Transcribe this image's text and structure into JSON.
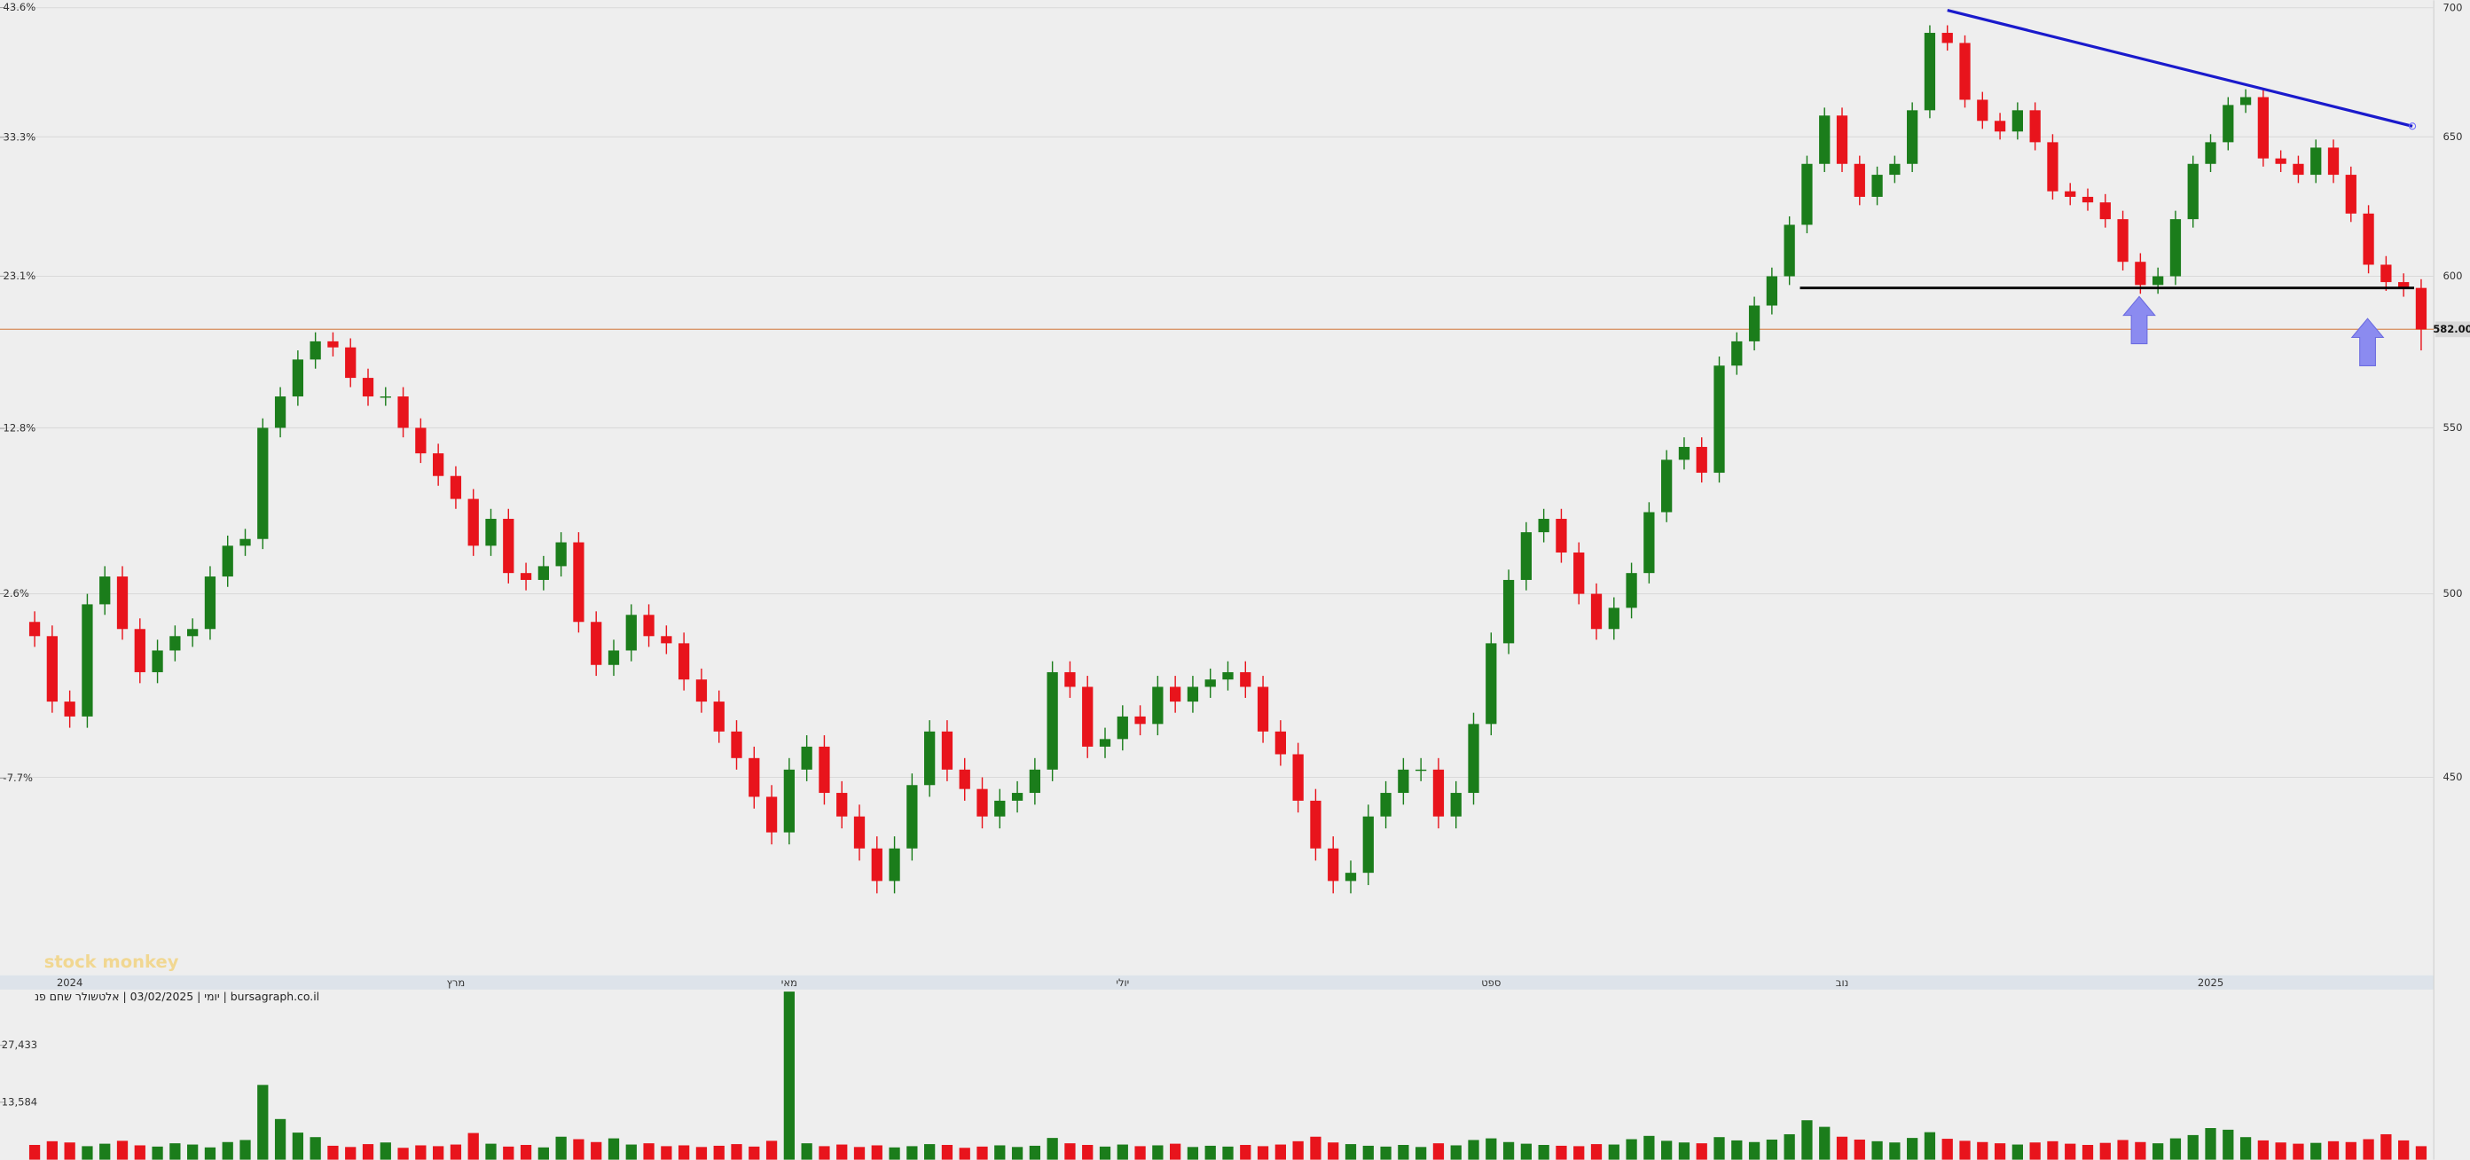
{
  "chart_data": {
    "type": "candlestick",
    "log_scale": true,
    "grid": true,
    "up_color": "#1b7d1b",
    "down_color": "#e8141c",
    "categories": [
      null,
      null,
      "2024",
      null,
      null,
      null,
      null,
      null,
      null,
      null,
      null,
      null,
      null,
      null,
      null,
      null,
      null,
      null,
      null,
      null,
      null,
      null,
      null,
      null,
      "מרץ",
      null,
      null,
      null,
      null,
      null,
      null,
      null,
      null,
      null,
      null,
      null,
      null,
      null,
      null,
      null,
      null,
      null,
      null,
      "מאי",
      null,
      null,
      null,
      null,
      null,
      null,
      null,
      null,
      null,
      null,
      null,
      null,
      null,
      null,
      null,
      null,
      null,
      null,
      "יולי",
      null,
      null,
      null,
      null,
      null,
      null,
      null,
      null,
      null,
      null,
      null,
      null,
      null,
      null,
      null,
      null,
      null,
      null,
      null,
      null,
      "ספט",
      null,
      null,
      null,
      null,
      null,
      null,
      null,
      null,
      null,
      null,
      null,
      null,
      null,
      null,
      null,
      null,
      null,
      null,
      null,
      "נוב",
      null,
      null,
      null,
      null,
      null,
      null,
      null,
      null,
      null,
      null,
      null,
      null,
      null,
      null,
      null,
      null,
      null,
      null,
      null,
      null,
      "2025",
      null,
      null,
      null,
      null,
      null,
      null,
      null,
      null,
      null,
      null,
      null,
      null
    ],
    "open": [
      492,
      488,
      470,
      466,
      497,
      505,
      490,
      478,
      484,
      488,
      490,
      505,
      514,
      516,
      550,
      560,
      572,
      578,
      576,
      566,
      560,
      560,
      550,
      542,
      535,
      528,
      514,
      522,
      506,
      504,
      508,
      515,
      492,
      480,
      484,
      494,
      488,
      486,
      476,
      470,
      462,
      455,
      445,
      436,
      452,
      458,
      446,
      440,
      432,
      424,
      432,
      448,
      462,
      452,
      447,
      440,
      444,
      446,
      452,
      478,
      474,
      458,
      460,
      466,
      464,
      474,
      470,
      474,
      476,
      478,
      474,
      462,
      456,
      444,
      432,
      424,
      426,
      440,
      446,
      452,
      452,
      440,
      446,
      464,
      486,
      504,
      518,
      522,
      512,
      500,
      490,
      496,
      506,
      524,
      540,
      544,
      536,
      570,
      578,
      590,
      600,
      618,
      640,
      658,
      640,
      628,
      636,
      640,
      660,
      690,
      686,
      664,
      656,
      652,
      660,
      648,
      630,
      628,
      626,
      620,
      605,
      597,
      600,
      620,
      640,
      648,
      662,
      665,
      642,
      640,
      636,
      646,
      636,
      622,
      604,
      598,
      596
    ],
    "high": [
      495,
      491,
      473,
      500,
      508,
      508,
      493,
      487,
      491,
      493,
      508,
      517,
      519,
      553,
      563,
      575,
      581,
      581,
      579,
      569,
      563,
      563,
      553,
      545,
      538,
      531,
      525,
      525,
      509,
      511,
      518,
      518,
      495,
      487,
      497,
      497,
      491,
      489,
      479,
      473,
      465,
      458,
      448,
      455,
      461,
      461,
      449,
      443,
      435,
      435,
      451,
      465,
      465,
      455,
      450,
      447,
      449,
      455,
      481,
      481,
      477,
      463,
      469,
      469,
      477,
      477,
      477,
      479,
      481,
      481,
      477,
      465,
      459,
      447,
      435,
      429,
      443,
      449,
      455,
      455,
      455,
      449,
      467,
      489,
      507,
      521,
      525,
      525,
      515,
      503,
      499,
      509,
      527,
      543,
      547,
      547,
      573,
      581,
      593,
      603,
      621,
      643,
      661,
      661,
      643,
      639,
      643,
      663,
      693,
      693,
      689,
      667,
      659,
      663,
      663,
      651,
      633,
      631,
      629,
      623,
      608,
      603,
      623,
      643,
      651,
      665,
      668,
      668,
      645,
      643,
      649,
      649,
      639,
      625,
      607,
      601,
      599
    ],
    "low": [
      485,
      467,
      463,
      463,
      494,
      487,
      475,
      475,
      481,
      485,
      487,
      502,
      511,
      513,
      547,
      557,
      569,
      573,
      563,
      557,
      557,
      547,
      539,
      532,
      525,
      511,
      511,
      503,
      501,
      501,
      505,
      489,
      477,
      477,
      481,
      485,
      483,
      473,
      467,
      459,
      452,
      442,
      433,
      433,
      449,
      443,
      437,
      429,
      421,
      421,
      429,
      445,
      449,
      444,
      437,
      437,
      441,
      443,
      449,
      471,
      455,
      455,
      457,
      461,
      461,
      467,
      467,
      471,
      473,
      471,
      459,
      453,
      441,
      429,
      421,
      421,
      423,
      437,
      443,
      449,
      437,
      437,
      443,
      461,
      483,
      501,
      515,
      509,
      497,
      487,
      487,
      493,
      503,
      521,
      537,
      533,
      533,
      567,
      575,
      587,
      597,
      615,
      637,
      637,
      625,
      625,
      633,
      637,
      657,
      683,
      661,
      653,
      649,
      649,
      645,
      627,
      625,
      623,
      617,
      602,
      594,
      594,
      597,
      617,
      637,
      645,
      659,
      639,
      637,
      633,
      633,
      633,
      619,
      601,
      595,
      593,
      575
    ],
    "close": [
      488,
      470,
      466,
      497,
      505,
      490,
      478,
      484,
      488,
      490,
      505,
      514,
      516,
      550,
      560,
      572,
      578,
      576,
      566,
      560,
      560,
      550,
      542,
      535,
      528,
      514,
      522,
      506,
      504,
      508,
      515,
      492,
      480,
      484,
      494,
      488,
      486,
      476,
      470,
      462,
      455,
      445,
      436,
      452,
      458,
      446,
      440,
      432,
      424,
      432,
      448,
      462,
      452,
      447,
      440,
      444,
      446,
      452,
      478,
      474,
      458,
      460,
      466,
      464,
      474,
      470,
      474,
      476,
      478,
      474,
      462,
      456,
      444,
      432,
      424,
      426,
      440,
      446,
      452,
      452,
      440,
      446,
      464,
      486,
      504,
      518,
      522,
      512,
      500,
      490,
      496,
      506,
      524,
      540,
      544,
      536,
      570,
      578,
      590,
      600,
      618,
      640,
      658,
      640,
      628,
      636,
      640,
      660,
      690,
      686,
      664,
      656,
      652,
      660,
      648,
      630,
      628,
      626,
      620,
      605,
      597,
      600,
      620,
      640,
      648,
      662,
      665,
      642,
      640,
      636,
      646,
      636,
      622,
      604,
      598,
      596,
      582
    ],
    "volume": [
      3200,
      4100,
      3800,
      2900,
      3500,
      4200,
      3100,
      2800,
      3600,
      3300,
      2600,
      3900,
      4400,
      17800,
      9500,
      6200,
      5100,
      3000,
      2700,
      3400,
      3800,
      2500,
      3100,
      2900,
      3300,
      6100,
      3500,
      2800,
      3200,
      2600,
      5200,
      4600,
      3900,
      4800,
      3300,
      3600,
      2900,
      3100,
      2700,
      3000,
      3400,
      2800,
      4200,
      40500,
      3600,
      2900,
      3300,
      2700,
      3100,
      2600,
      2900,
      3400,
      3200,
      2500,
      2800,
      3100,
      2700,
      3000,
      4900,
      3600,
      3200,
      2800,
      3300,
      2900,
      3100,
      3500,
      2700,
      3000,
      2800,
      3200,
      2900,
      3300,
      4100,
      5200,
      3800,
      3400,
      3000,
      2800,
      3200,
      2700,
      3600,
      3100,
      4400,
      4800,
      3900,
      3500,
      3200,
      3000,
      2900,
      3400,
      3300,
      4600,
      5400,
      4200,
      3800,
      3600,
      5100,
      4300,
      3900,
      4500,
      5800,
      9200,
      7600,
      5200,
      4500,
      4100,
      3800,
      4900,
      6300,
      4700,
      4200,
      3900,
      3600,
      3300,
      3800,
      4100,
      3500,
      3200,
      3700,
      4400,
      3900,
      3600,
      4800,
      5600,
      7300,
      6900,
      5100,
      4300,
      3800,
      3500,
      3700,
      4100,
      3900,
      4600,
      5800,
      4300,
      2900
    ],
    "ylim": [
      402,
      703
    ],
    "yticks": [
      450,
      500,
      550,
      600,
      650,
      700
    ],
    "y2lim": [
      -17.5,
      44.2
    ],
    "y2ticks": [
      {
        "value": -7.7,
        "label": "-7.7%"
      },
      {
        "value": 2.6,
        "label": "2.6%"
      },
      {
        "value": 12.8,
        "label": "12.8%"
      },
      {
        "value": 23.1,
        "label": "23.1%"
      },
      {
        "value": 33.3,
        "label": "33.3%"
      },
      {
        "value": 43.6,
        "label": "43.6%"
      }
    ],
    "volume_ylim": [
      0,
      41000
    ],
    "volume_yticks": [
      {
        "value": 13584,
        "label": "13,584"
      },
      {
        "value": 27433,
        "label": "27,433"
      }
    ],
    "price_line": {
      "value": 582,
      "label": "582.00",
      "color": "#d9966a"
    },
    "support_line": {
      "value": 596,
      "start": 100.6,
      "end": 135.6,
      "color": "#000000"
    },
    "trendline": {
      "start": [
        109,
        699
      ],
      "end": [
        135.5,
        654
      ],
      "color": "#1a1acc"
    },
    "footer": "יומי | 03/02/2025 | אלטשולר שחם פנ | bursagraph.co.il",
    "watermark": "stock monkey"
  }
}
